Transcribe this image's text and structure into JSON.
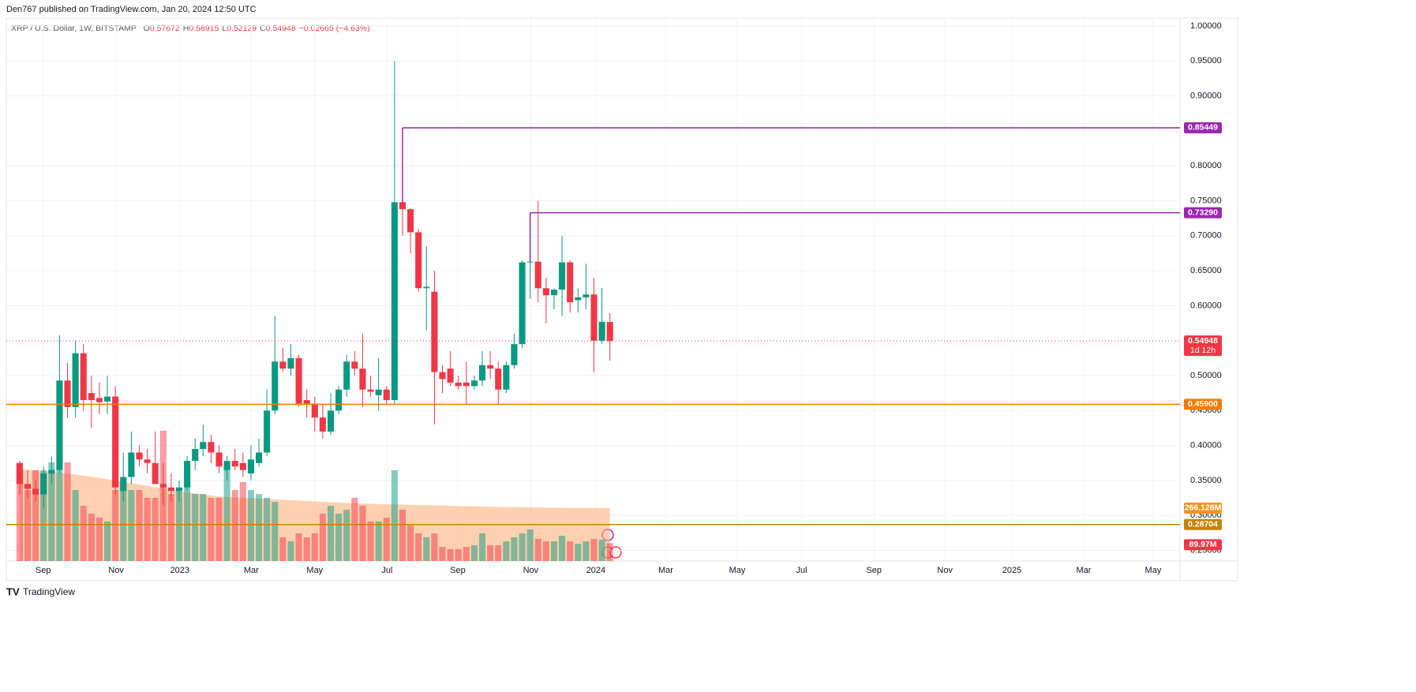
{
  "header": {
    "publisher": "Den767 published on TradingView.com, Jan 20, 2024 12:50 UTC"
  },
  "footer": {
    "brand": "TradingView"
  },
  "chart_data": {
    "type": "candlestick",
    "title": "XRP / U.S. Dollar, 1W, BITSTAMP",
    "ohlc_legend": [
      {
        "key": "O",
        "value": "0.57672"
      },
      {
        "key": "H",
        "value": "0.58915"
      },
      {
        "key": "L",
        "value": "0.52129"
      },
      {
        "key": "C",
        "value": "0.54948"
      }
    ],
    "change": "−0.02665 (−4.63%)",
    "up_color": "#089981",
    "down_color": "#f23645",
    "open": [
      0.375,
      0.345,
      0.338,
      0.33,
      0.36,
      0.365,
      0.493,
      0.455,
      0.532,
      0.475,
      0.468,
      0.463,
      0.47,
      0.335,
      0.355,
      0.39,
      0.38,
      0.375,
      0.345,
      0.34,
      0.335,
      0.34,
      0.378,
      0.395,
      0.405,
      0.39,
      0.365,
      0.378,
      0.375,
      0.36,
      0.375,
      0.39,
      0.45,
      0.52,
      0.51,
      0.525,
      0.465,
      0.46,
      0.44,
      0.42,
      0.45,
      0.48,
      0.52,
      0.51,
      0.48,
      0.472,
      0.48,
      0.465,
      0.748,
      0.738,
      0.705,
      0.625,
      0.62,
      0.505,
      0.51,
      0.49,
      0.49,
      0.485,
      0.493,
      0.515,
      0.51,
      0.48,
      0.515,
      0.545,
      0.662,
      0.663,
      0.625,
      0.615,
      0.623,
      0.662,
      0.608,
      0.612,
      0.616,
      0.55,
      0.57672
    ],
    "high": [
      0.378,
      0.365,
      0.35,
      0.37,
      0.385,
      0.558,
      0.518,
      0.55,
      0.545,
      0.5,
      0.49,
      0.5,
      0.485,
      0.39,
      0.42,
      0.4,
      0.395,
      0.42,
      0.375,
      0.36,
      0.35,
      0.385,
      0.41,
      0.43,
      0.415,
      0.4,
      0.385,
      0.395,
      0.39,
      0.4,
      0.41,
      0.48,
      0.585,
      0.54,
      0.545,
      0.53,
      0.48,
      0.47,
      0.46,
      0.475,
      0.485,
      0.53,
      0.535,
      0.56,
      0.5,
      0.525,
      0.485,
      0.95,
      0.76,
      0.74,
      0.71,
      0.685,
      0.65,
      0.515,
      0.535,
      0.5,
      0.52,
      0.5,
      0.535,
      0.535,
      0.52,
      0.52,
      0.56,
      0.665,
      0.733,
      0.75,
      0.64,
      0.625,
      0.7,
      0.665,
      0.625,
      0.66,
      0.64,
      0.625,
      0.58915
    ],
    "low": [
      0.33,
      0.325,
      0.32,
      0.31,
      0.345,
      0.36,
      0.44,
      0.44,
      0.45,
      0.425,
      0.445,
      0.445,
      0.33,
      0.32,
      0.345,
      0.37,
      0.36,
      0.35,
      0.315,
      0.32,
      0.32,
      0.335,
      0.365,
      0.385,
      0.375,
      0.36,
      0.35,
      0.365,
      0.355,
      0.35,
      0.37,
      0.385,
      0.445,
      0.505,
      0.5,
      0.455,
      0.44,
      0.42,
      0.41,
      0.415,
      0.445,
      0.47,
      0.5,
      0.455,
      0.47,
      0.45,
      0.46,
      0.46,
      0.7,
      0.675,
      0.62,
      0.565,
      0.43,
      0.475,
      0.485,
      0.48,
      0.46,
      0.48,
      0.485,
      0.495,
      0.46,
      0.475,
      0.51,
      0.54,
      0.61,
      0.605,
      0.575,
      0.595,
      0.585,
      0.59,
      0.59,
      0.595,
      0.505,
      0.545,
      0.52129
    ],
    "close": [
      0.345,
      0.338,
      0.33,
      0.36,
      0.365,
      0.493,
      0.455,
      0.532,
      0.465,
      0.465,
      0.462,
      0.47,
      0.34,
      0.355,
      0.39,
      0.38,
      0.375,
      0.345,
      0.34,
      0.335,
      0.34,
      0.378,
      0.395,
      0.405,
      0.39,
      0.37,
      0.378,
      0.37,
      0.365,
      0.38,
      0.39,
      0.45,
      0.52,
      0.51,
      0.525,
      0.46,
      0.46,
      0.44,
      0.42,
      0.45,
      0.48,
      0.52,
      0.51,
      0.48,
      0.477,
      0.48,
      0.465,
      0.748,
      0.738,
      0.705,
      0.625,
      0.627,
      0.505,
      0.495,
      0.49,
      0.485,
      0.485,
      0.493,
      0.515,
      0.51,
      0.48,
      0.515,
      0.545,
      0.662,
      0.663,
      0.625,
      0.615,
      0.623,
      0.662,
      0.605,
      0.612,
      0.616,
      0.55,
      0.577,
      0.54948
    ],
    "ylim": [
      0.2348,
      1.0113
    ],
    "yticks": [
      {
        "value": 1.0,
        "label": "1.00000"
      },
      {
        "value": 0.95,
        "label": "0.95000"
      },
      {
        "value": 0.9,
        "label": "0.90000"
      },
      {
        "value": 0.8,
        "label": "0.80000"
      },
      {
        "value": 0.75,
        "label": "0.75000"
      },
      {
        "value": 0.7,
        "label": "0.70000"
      },
      {
        "value": 0.65,
        "label": "0.65000"
      },
      {
        "value": 0.6,
        "label": "0.60000"
      },
      {
        "value": 0.5,
        "label": "0.50000"
      },
      {
        "value": 0.45,
        "label": "0.45000"
      },
      {
        "value": 0.4,
        "label": "0.40000"
      },
      {
        "value": 0.35,
        "label": "0.35000"
      },
      {
        "value": 0.3,
        "label": "0.30000"
      },
      {
        "value": 0.25,
        "label": "0.25000"
      }
    ],
    "xlim": [
      -1.67,
      145.47
    ],
    "xticks": [
      {
        "value": 2.95,
        "label": "Sep"
      },
      {
        "value": 12.1,
        "label": "Nov"
      },
      {
        "value": 20.08,
        "label": "2023"
      },
      {
        "value": 29.04,
        "label": "Mar"
      },
      {
        "value": 37.0,
        "label": "May"
      },
      {
        "value": 46.06,
        "label": "Jul"
      },
      {
        "value": 54.92,
        "label": "Sep"
      },
      {
        "value": 64.07,
        "label": "Nov"
      },
      {
        "value": 72.24,
        "label": "2024"
      },
      {
        "value": 81.0,
        "label": "Mar"
      },
      {
        "value": 89.96,
        "label": "May"
      },
      {
        "value": 98.03,
        "label": "Jul"
      },
      {
        "value": 107.1,
        "label": "Sep"
      },
      {
        "value": 116.0,
        "label": "Nov"
      },
      {
        "value": 124.4,
        "label": "2025"
      },
      {
        "value": 133.4,
        "label": "Mar"
      },
      {
        "value": 142.1,
        "label": "May"
      }
    ],
    "grid": true,
    "volume": {
      "up_color": "rgba(8,153,129,0.5)",
      "down_color": "rgba(242,54,69,0.5)",
      "ylim": [
        0,
        2731
      ],
      "values": [
        476,
        357,
        457,
        457,
        496,
        476,
        496,
        357,
        278,
        238,
        218,
        199,
        357,
        377,
        357,
        357,
        318,
        318,
        655,
        337,
        357,
        377,
        337,
        337,
        318,
        318,
        476,
        357,
        397,
        357,
        337,
        318,
        298,
        119,
        99,
        139,
        119,
        139,
        238,
        278,
        238,
        258,
        318,
        278,
        199,
        199,
        218,
        457,
        258,
        179,
        139,
        119,
        139,
        71,
        60,
        60,
        71,
        79,
        139,
        79,
        79,
        99,
        119,
        139,
        159,
        111,
        99,
        99,
        127,
        99,
        87,
        99,
        111,
        107,
        89.97
      ],
      "last_label": "89.97M"
    },
    "volume_ma": {
      "color": "#ffb07a",
      "values": [
        460,
        458,
        455,
        452,
        448,
        444,
        440,
        435,
        430,
        424,
        418,
        412,
        405,
        398,
        392,
        385,
        378,
        372,
        366,
        360,
        352,
        345,
        340,
        335,
        330,
        325,
        322,
        320,
        318,
        316,
        314,
        312,
        310,
        308,
        306,
        304,
        302,
        300,
        298,
        296,
        294,
        292,
        290,
        289,
        288,
        287,
        286,
        285,
        284,
        283,
        282,
        281,
        280,
        279,
        278,
        277,
        276,
        275,
        274,
        273,
        272,
        271,
        271,
        270,
        270,
        269,
        269,
        268,
        268,
        267,
        267,
        267,
        266.5,
        266.3,
        266.128
      ],
      "last_label": "266.128M"
    },
    "price_lines": [
      {
        "value": 0.85449,
        "color": "#9c27b0",
        "from": 48
      },
      {
        "value": 0.7329,
        "label": "0.73290",
        "color": "#9c27b0",
        "from": 64
      },
      {
        "value": 0.459,
        "label": "0.45900",
        "color": "#f57c00"
      },
      {
        "value": 0.28704,
        "color": "#c68400"
      }
    ],
    "last_price": {
      "value": 0.54948,
      "color": "#f23645",
      "countdown": "1d 12h"
    }
  }
}
